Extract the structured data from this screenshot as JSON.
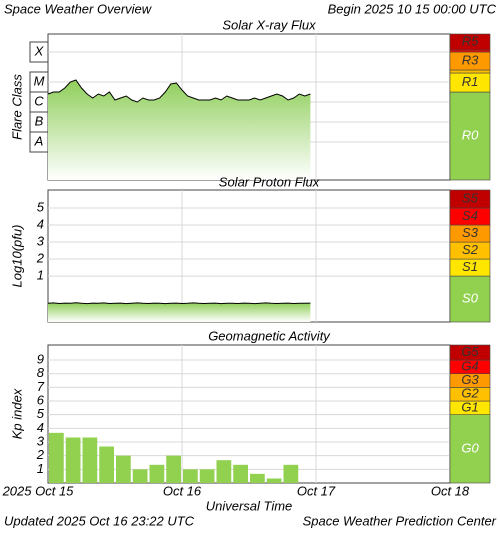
{
  "header": {
    "title": "Space Weather Overview",
    "begin": "Begin 2025 10 15 00:00 UTC"
  },
  "footer": {
    "updated": "Updated 2025 Oct 16 23:22 UTC",
    "credit": "Space Weather Prediction Center"
  },
  "chart_data": [
    {
      "type": "line",
      "title": "Solar X-ray Flux",
      "y_label": "Flare Class",
      "ylim": [
        -9.9,
        -2.6
      ],
      "yticks": [
        {
          "value": -8,
          "label": "A"
        },
        {
          "value": -7,
          "label": "B"
        },
        {
          "value": -6,
          "label": "C"
        },
        {
          "value": -5,
          "label": "M"
        },
        {
          "value": -3.5,
          "label": "X"
        }
      ],
      "x": [
        0,
        1,
        2,
        3,
        4,
        5,
        6,
        7,
        8,
        9,
        10,
        11,
        12,
        13,
        14,
        15,
        16,
        17,
        18,
        19,
        20,
        21,
        22,
        23,
        24,
        25,
        26,
        27,
        28,
        29,
        30,
        31,
        32,
        33,
        34,
        35,
        36,
        37,
        38,
        39,
        40,
        41,
        42,
        43,
        44,
        45,
        46,
        47
      ],
      "series": [
        {
          "color": "#000000",
          "fill": "#8fce5a",
          "values": [
            -5.6,
            -5.5,
            -5.5,
            -5.3,
            -5.0,
            -4.9,
            -5.3,
            -5.6,
            -5.8,
            -5.6,
            -5.7,
            -5.5,
            -5.9,
            -5.8,
            -5.7,
            -5.9,
            -6.0,
            -5.8,
            -5.9,
            -5.9,
            -5.8,
            -5.5,
            -5.1,
            -5.05,
            -5.4,
            -5.7,
            -5.8,
            -5.9,
            -5.9,
            -5.9,
            -5.8,
            -5.9,
            -5.7,
            -5.8,
            -5.9,
            -5.9,
            -5.9,
            -5.8,
            -5.9,
            -5.8,
            -5.7,
            -5.6,
            -5.7,
            -5.9,
            -5.8,
            -5.6,
            -5.7,
            -5.6
          ]
        }
      ],
      "scale": [
        {
          "label": "R0",
          "color": "#92d050",
          "from": -9.9,
          "to": -5.5
        },
        {
          "label": "R1",
          "color": "#ffe600",
          "from": -5.5,
          "to": -4.55
        },
        {
          "color": "#ffc000",
          "from": -4.55,
          "to": -4.4
        },
        {
          "label": "R3",
          "color": "#ff9900",
          "from": -4.4,
          "to": -3.5
        },
        {
          "color": "#ff0000",
          "from": -3.5,
          "to": -3.4
        },
        {
          "label": "R5",
          "color": "#c00000",
          "from": -3.4,
          "to": -2.6
        }
      ]
    },
    {
      "type": "line",
      "title": "Solar Proton Flux",
      "y_label": "Log10(pfu)",
      "ylim": [
        -1.7,
        6.06
      ],
      "yticks": [
        1,
        2,
        3,
        4,
        5
      ],
      "x": [
        0,
        1,
        2,
        3,
        4,
        5,
        6,
        7,
        8,
        9,
        10,
        11,
        12,
        13,
        14,
        15,
        16,
        17,
        18,
        19,
        20,
        21,
        22,
        23,
        24,
        25,
        26,
        27,
        28,
        29,
        30,
        31,
        32,
        33,
        34,
        35,
        36,
        37,
        38,
        39,
        40,
        41,
        42,
        43,
        44,
        45,
        46,
        47
      ],
      "series": [
        {
          "color": "#000000",
          "fill": "#8fce5a",
          "values": [
            -0.6,
            -0.58,
            -0.61,
            -0.59,
            -0.6,
            -0.57,
            -0.6,
            -0.62,
            -0.59,
            -0.6,
            -0.58,
            -0.61,
            -0.6,
            -0.59,
            -0.62,
            -0.6,
            -0.58,
            -0.6,
            -0.61,
            -0.59,
            -0.6,
            -0.62,
            -0.6,
            -0.59,
            -0.61,
            -0.6,
            -0.58,
            -0.6,
            -0.61,
            -0.6,
            -0.59,
            -0.62,
            -0.6,
            -0.6,
            -0.61,
            -0.59,
            -0.6,
            -0.62,
            -0.6,
            -0.58,
            -0.6,
            -0.61,
            -0.6,
            -0.59,
            -0.61,
            -0.6,
            -0.6,
            -0.59
          ]
        }
      ],
      "scale": [
        {
          "label": "S0",
          "color": "#92d050",
          "from": -1.7,
          "to": 1
        },
        {
          "label": "S1",
          "color": "#ffe600",
          "from": 1,
          "to": 2
        },
        {
          "label": "S2",
          "color": "#ffc000",
          "from": 2,
          "to": 3
        },
        {
          "label": "S3",
          "color": "#ff9900",
          "from": 3,
          "to": 4
        },
        {
          "label": "S4",
          "color": "#ff0000",
          "from": 4,
          "to": 5
        },
        {
          "label": "S5",
          "color": "#c00000",
          "from": 5,
          "to": 6.06
        }
      ]
    },
    {
      "type": "bar",
      "title": "Geomagnetic Activity",
      "y_label": "Kp index",
      "x_label": "Universal Time",
      "ylim": [
        0,
        10.1
      ],
      "yticks": [
        1,
        2,
        3,
        4,
        5,
        6,
        7,
        8,
        9
      ],
      "xlim": [
        0,
        72
      ],
      "xticks": [
        {
          "value": 0,
          "label": "2025 Oct 15"
        },
        {
          "value": 24,
          "label": "Oct 16"
        },
        {
          "value": 48,
          "label": "Oct 17"
        },
        {
          "value": 72,
          "label": "Oct 18"
        }
      ],
      "x": [
        0,
        3,
        6,
        9,
        12,
        15,
        18,
        21,
        24,
        27,
        30,
        33,
        36,
        39,
        42
      ],
      "values": [
        3.67,
        3.33,
        3.33,
        2.67,
        2.0,
        1.0,
        1.33,
        2.0,
        1.0,
        1.0,
        1.67,
        1.33,
        0.67,
        0.33,
        1.33
      ],
      "color": "#92d050",
      "scale": [
        {
          "label": "G0",
          "color": "#92d050",
          "from": 0,
          "to": 5
        },
        {
          "label": "G1",
          "color": "#ffe600",
          "from": 5,
          "to": 6
        },
        {
          "label": "G2",
          "color": "#ffc000",
          "from": 6,
          "to": 7
        },
        {
          "label": "G3",
          "color": "#ff9900",
          "from": 7,
          "to": 8
        },
        {
          "label": "G4",
          "color": "#ff0000",
          "from": 8,
          "to": 9
        },
        {
          "label": "G5",
          "color": "#c00000",
          "from": 9,
          "to": 10.1
        }
      ]
    }
  ]
}
